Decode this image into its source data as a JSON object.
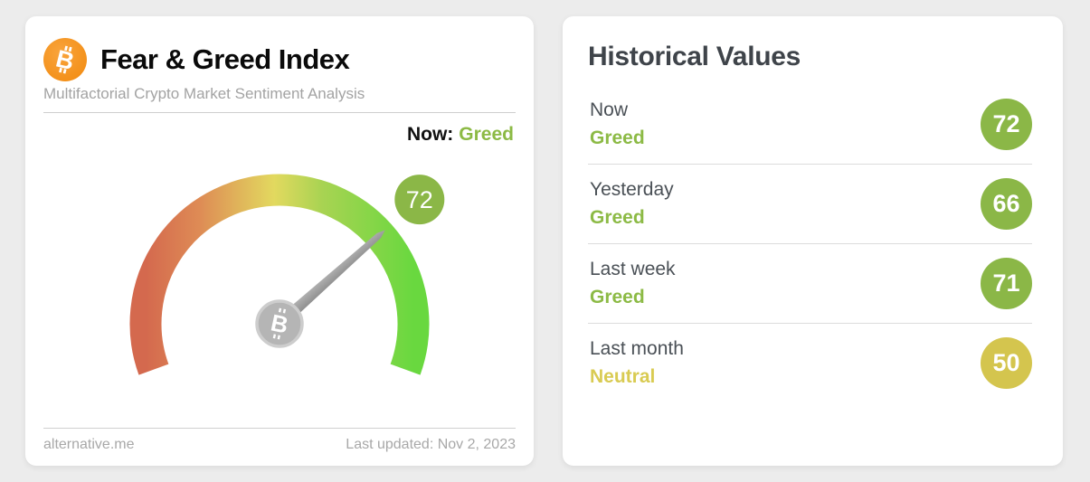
{
  "page": {
    "background_color": "#ececec"
  },
  "left_card": {
    "title": "Fear & Greed Index",
    "subtitle": "Multifactorial Crypto Market Sentiment Analysis",
    "now": {
      "label": "Now:",
      "value": "Greed",
      "value_color": "#8cba45"
    },
    "gauge": {
      "value": 72,
      "min": 0,
      "max": 100,
      "sweep_degrees": 220,
      "badge_value": "72",
      "badge_color": "#8bb747",
      "needle_color": "#9d9d9d",
      "hub_icon": "bitcoin-icon",
      "arc_colors": [
        "#d4694e",
        "#de8b55",
        "#e2d95f",
        "#a8d352",
        "#69d83f"
      ]
    },
    "footer": {
      "source": "alternative.me",
      "last_updated": "Last updated: Nov 2, 2023"
    }
  },
  "right_card": {
    "title": "Historical Values",
    "rows": [
      {
        "label": "Now",
        "sentiment": "Greed",
        "value": "72",
        "badge_color": "#8bb747",
        "sentiment_color": "#8cba45"
      },
      {
        "label": "Yesterday",
        "sentiment": "Greed",
        "value": "66",
        "badge_color": "#8bb747",
        "sentiment_color": "#8cba45"
      },
      {
        "label": "Last week",
        "sentiment": "Greed",
        "value": "71",
        "badge_color": "#8bb747",
        "sentiment_color": "#8cba45"
      },
      {
        "label": "Last month",
        "sentiment": "Neutral",
        "value": "50",
        "badge_color": "#d4c54e",
        "sentiment_color": "#d9cb52"
      }
    ]
  },
  "chart_data": {
    "type": "gauge",
    "title": "Fear & Greed Index",
    "value": 72,
    "value_classification": "Greed",
    "range": [
      0,
      100
    ],
    "scale_colors": "red (Extreme Fear) to green (Extreme Greed)",
    "historical": [
      {
        "period": "Now",
        "classification": "Greed",
        "value": 72
      },
      {
        "period": "Yesterday",
        "classification": "Greed",
        "value": 66
      },
      {
        "period": "Last week",
        "classification": "Greed",
        "value": 71
      },
      {
        "period": "Last month",
        "classification": "Neutral",
        "value": 50
      }
    ]
  }
}
